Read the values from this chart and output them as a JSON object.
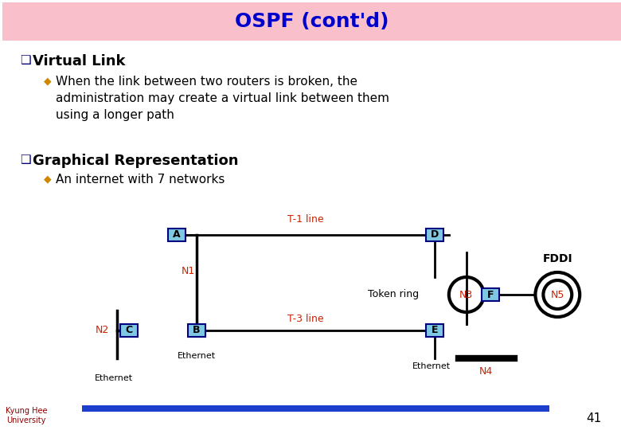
{
  "title": "OSPF (cont'd)",
  "title_color": "#0000CC",
  "title_bg": "#F9C0CB",
  "bg_color": "#FFFFFF",
  "bullet1_main": "Virtual Link",
  "bullet1_sub": "When the link between two routers is broken, the\nadministration may create a virtual link between them\nusing a longer path",
  "bullet2_main": "Graphical Representation",
  "bullet2_sub": "An internet with 7 networks",
  "page_num": "41",
  "blue_bar_color": "#1E3ECC",
  "node_fill": "#7EC8E3",
  "node_border": "#000080",
  "network_label_color": "#CC2200",
  "router_label_color": "#000000",
  "text_color": "#000000",
  "dark_line": "#000000",
  "fddi_label": "FDDI",
  "token_ring_label": "Token ring",
  "ethernet_labels": [
    "Ethernet",
    "Ethernet",
    "Ethernet"
  ],
  "t1_label": "T-1 line",
  "t3_label": "T-3 line",
  "n2_label": "N2",
  "n1_label": "N1",
  "n3_label": "N3",
  "n4_label": "N4",
  "n5_label": "N5",
  "node_labels": [
    "A",
    "B",
    "C",
    "D",
    "E",
    "F"
  ]
}
